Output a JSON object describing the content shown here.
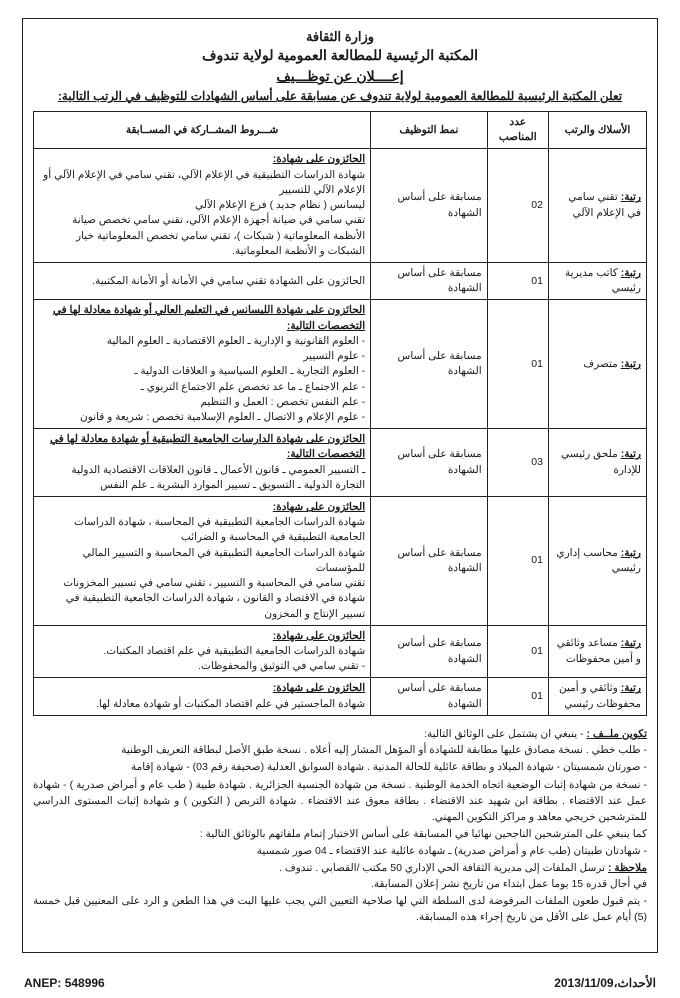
{
  "header": {
    "ministry": "وزارة الثقافة",
    "library": "المكتبة الرئيسية للمطالعة العمومية لولاية تندوف",
    "announcement": "إعــــلان عن توظـــيف",
    "intro": "تعلن المكتبة الرئيسية للمطالعة العمومية لولاية تندوف عن مسابقة على أساس الشهادات للتوظيف في الرتب التالية:"
  },
  "table": {
    "columns": {
      "rank": "الأسلاك والرتب",
      "count": "عدد المناصب",
      "mode": "نمط التوظيف",
      "conditions": "شـــروط المشــاركة في المســابقة"
    },
    "rows": [
      {
        "rank": "رتبة: تقني سامي في الإعلام الآلي",
        "count": "02",
        "mode": "مسابقة على أساس الشهادة",
        "cond_head": "الحائزون على شهادة:",
        "cond_body": "شهادة الدراسات التطبيقية في الإعلام الآلي، تقني سامي في الإعلام الآلي أو الإعلام الآلي للتسيير\nليسانس ( نظام جديد ) فرع الإعلام الآلي\nتقني سامي في صيانة أجهزة الإعلام الآلي، تقني سامي تخصص صيانة الأنظمة المعلوماتية ( شبكات )، تقني سامي تخصص المعلوماتية خيار الشبكات و الأنظمة المعلوماتية."
      },
      {
        "rank": "رتبة: كاتب مديرية رئيسي",
        "count": "01",
        "mode": "مسابقة على أساس الشهادة",
        "cond_head": "",
        "cond_body": "الحائزون على الشهادة تقني سامي في الأمانة أو الأمانة المكتبية."
      },
      {
        "rank": "رتبة: متصرف",
        "count": "01",
        "mode": "مسابقة على أساس الشهادة",
        "cond_head": "الحائزون على شهادة الليسانس في التعليم العالي أو شهادة معادلة لها في التخصصات التالية:",
        "cond_body": "- العلوم القانونية و الإدارية ـ العلوم الاقتصادية ـ العلوم المالية\n- علوم التسيير\n- العلوم التجارية ـ العلوم السياسية و العلاقات الدولية ـ\n- علم الاجتماع ـ ما عد تخصص علم الاجتماع التربوي ـ\n- علم النفس تخصص : العمل و التنظيم\n- علوم الإعلام و الاتصال ـ العلوم الإسلامية تخصص : شريعة و قانون"
      },
      {
        "rank": "رتبة: ملحق رئيسي للإدارة",
        "count": "03",
        "mode": "مسابقة على أساس الشهادة",
        "cond_head": "الحائزون على شهادة الدارسات الجامعية التطبيقية أو شهادة معادلة لها في التخصصات التالية:",
        "cond_body": "ـ التسيير العمومي ـ قانون الأعمال ـ قانون العلاقات الاقتصادية الدولية\nالتجارة الدولية ـ التسويق ـ تسيير الموارد البشرية ـ علم النفس"
      },
      {
        "rank": "رتبة: محاسب إداري رئيسي",
        "count": "01",
        "mode": "مسابقة على أساس الشهادة",
        "cond_head": "الحائزون على شهادة:",
        "cond_body": "شهادة الدراسات الجامعية التطبيقية في المحاسبة ، شهادة الدراسات الجامعية التطبيقية في المحاسبة و الضرائب\nشهادة الدراسات الجامعية التطبيقية في المحاسبة و التسيير المالي للمؤسسات\nتقني سامي في المحاسبة و التسيير ، تقني سامي في تسيير المخزونات\nشهادة في الاقتصاد و القانون ، شهادة الدراسات الجامعية التطبيقية في تسيير الإنتاج و المخزون"
      },
      {
        "rank": "رتبة: مساعد وثائقي و أمين محفوظات",
        "count": "01",
        "mode": "مسابقة على أساس الشهادة",
        "cond_head": "الحائزون على شهادة:",
        "cond_body": "شهادة الدراسات الجامعية التطبيقية في علم اقتصاد المكتبات.\n- تقني سامي في التوثيق والمحفوظات."
      },
      {
        "rank": "رتبة: وثائقي و أمين محفوظات رئيسي",
        "count": "01",
        "mode": "مسابقة على أساس الشهادة",
        "cond_head": "الحائزون على شهادة:",
        "cond_body": "شهادة الماجستير في علم اقتصاد المكتبات أو شهادة معادلة لها."
      }
    ]
  },
  "notes": {
    "file_title": "تكوين ملــف :",
    "file_intro": "- ينبغي ان يشتمل على الوثائق التالية:",
    "file_items": [
      "- طلب خطي . نسخة مصادق عليها مطابقة للشهادة أو المؤهل المشار إليه أعلاه . نسخة طبق الأصل لبطاقة التعريف الوطنية",
      "- صورتان شمسيتان - شهادة الميلاد و بطاقة عائلية للحالة المدنية . شهادة السوابق العدلية (صحيفة رقم 03) - شهادة إقامة",
      "- نسخة من شهادة إثبات الوضعية اتجاه الخدمة الوطنية . نسخة من شهادة الجنسية الجزائرية . شهادة طبية ( طب عام و أمراض صدرية ) - شهادة عمل عند الاقتضاء . بطاقة ابن شهيد عند الاقتضاء . بطاقة معوق عند الاقتضاء . شهادة التربص ( التكوين ) و شهادة إثبات المستوى الدراسي للمترشحين خريجي معاهد و مراكز التكوين المهني."
    ],
    "success_intro": "كما ينبغي على المترشحين الناجحين نهائيا في المسابقة على أساس الاختبار إتمام ملفاتهم بالوثائق التالية :",
    "success_items": [
      "- شهادتان طبيتان (طب عام و أمراض صدرية) ـ شهادة عائلية عند الاقتضاء ـ 04 صور شمسية"
    ],
    "note_label": "ملاحظة :",
    "note_text": "ترسل الملفات إلى مديرية الثقافة الحي الإداري 50 مكتب /القصابي . تندوف .",
    "deadline": "في أجال قدره 15 يوما عمل ابتداء من تاريخ نشر إعلان المسابقة.",
    "appeal": "- يتم قبول طعون الملفات المرفوضة لدى السلطة التي لها صلاحية التعيين التي يجب عليها البت في هذا الطعن و الرد على المعنيين قبل خمسة (5) أيام عمل على الأقل من تاريخ إجراء هذه المسابقة."
  },
  "footer": {
    "date_label": "الأحداث،",
    "date_value": "2013/11/09",
    "anep_label": "ANEP:",
    "anep_value": "548996"
  }
}
